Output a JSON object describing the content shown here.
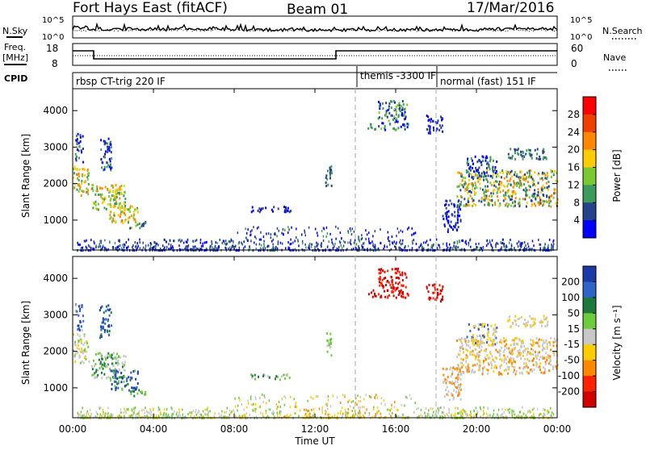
{
  "header": {
    "station": "Fort Hays East (fitACF)",
    "beam": "Beam 01",
    "date": "17/Mar/2016"
  },
  "noise_panel": {
    "left_label": "N.Sky",
    "left_ticks": [
      "10^5",
      "10^0"
    ],
    "right_label": "N.Search",
    "right_ticks": [
      "10^5",
      "10^0"
    ]
  },
  "freq_panel": {
    "left_label_1": "Freq.",
    "left_label_2": "[MHz]",
    "left_ticks": [
      "18",
      "8"
    ],
    "right_label": "Nave",
    "right_ticks": [
      "60",
      "0"
    ]
  },
  "cpid_panel": {
    "label": "CPID",
    "modes": [
      "rbsp CT-trig 220 IF",
      "themis -3300 IF",
      "normal (fast) 151 IF"
    ]
  },
  "chart_data": [
    {
      "type": "heatmap",
      "ylabel": "Slant Range [km]",
      "yticks": [
        1000,
        2000,
        3000,
        4000
      ],
      "ylim": [
        180,
        4600
      ],
      "xlim": [
        0,
        24
      ],
      "colorbar": {
        "label": "Power [dB]",
        "ticks": [
          "28",
          "24",
          "20",
          "16",
          "12",
          "8",
          "4"
        ],
        "colors": [
          "#ff0000",
          "#f04000",
          "#ff8800",
          "#ffcc00",
          "#7cc832",
          "#3c9a5a",
          "#26428b",
          "#0000ff"
        ]
      },
      "mode_change_times": [
        14.0,
        18.0
      ]
    },
    {
      "type": "heatmap",
      "ylabel": "Slant Range [km]",
      "yticks": [
        1000,
        2000,
        3000,
        4000
      ],
      "ylim": [
        180,
        4600
      ],
      "xlim": [
        0,
        24
      ],
      "colorbar": {
        "label": "Velocity [m s⁻¹]",
        "ticks": [
          "200",
          "100",
          "50",
          "15",
          "-15",
          "-50",
          "-100",
          "-200"
        ],
        "colors": [
          "#1a3aa8",
          "#2e64c8",
          "#1e7a3c",
          "#6ccc3c",
          "#c8c8c8",
          "#ffcc00",
          "#ff8800",
          "#ff2200",
          "#d00000"
        ]
      },
      "mode_change_times": [
        14.0,
        18.0
      ]
    }
  ],
  "time_axis": {
    "label": "Time UT",
    "ticks": [
      "00:00",
      "04:00",
      "08:00",
      "12:00",
      "16:00",
      "20:00",
      "00:00"
    ]
  }
}
